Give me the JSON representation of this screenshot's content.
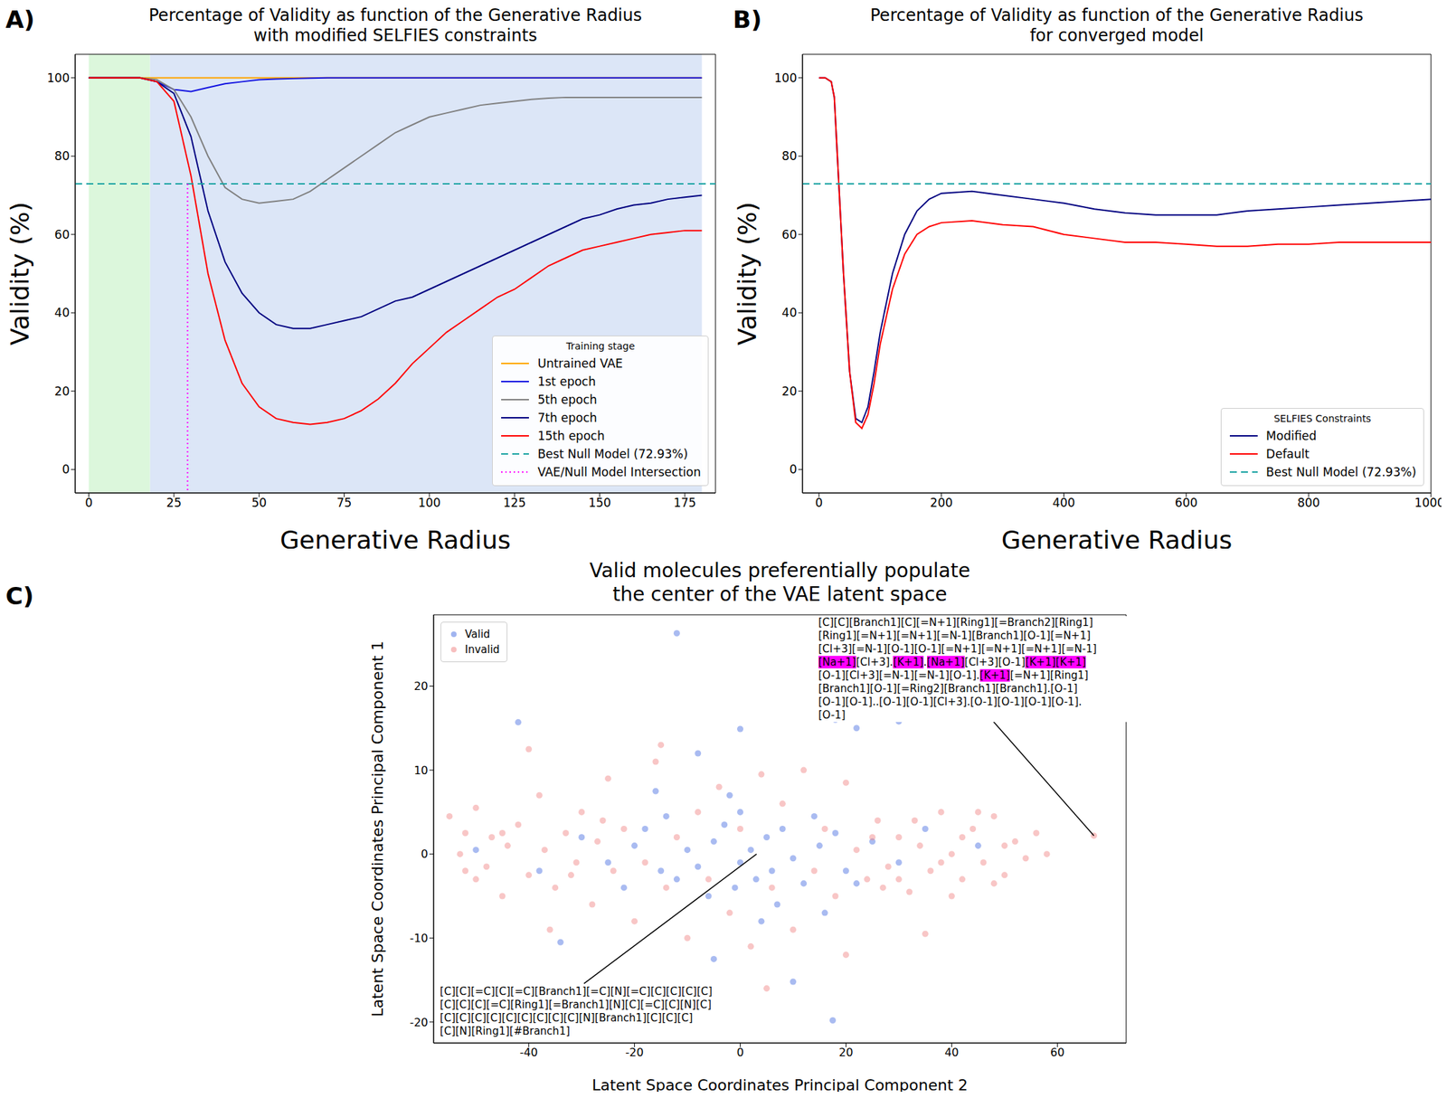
{
  "chart_data": [
    {
      "type": "line",
      "panel_label": "A)",
      "title": "Percentage of Validity as function of the Generative Radius\nwith modified SELFIES constraints",
      "x_label": "Generative Radius",
      "y_label": "Validity (%)",
      "xlim": [
        -4,
        184
      ],
      "ylim": [
        -6,
        106
      ],
      "xticks": [
        0,
        25,
        50,
        75,
        100,
        125,
        150,
        175
      ],
      "yticks": [
        0,
        20,
        40,
        60,
        80,
        100
      ],
      "legend": "lower right",
      "legend_title": "Training stage",
      "shaded_regions": [
        {
          "x": [
            0,
            18
          ],
          "color": "#dcf7dc"
        },
        {
          "x": [
            18,
            180
          ],
          "color": "#dce6f7"
        }
      ],
      "x": [
        0,
        5,
        10,
        15,
        20,
        25,
        30,
        35,
        40,
        45,
        50,
        55,
        60,
        65,
        70,
        75,
        80,
        85,
        90,
        95,
        100,
        105,
        110,
        115,
        120,
        125,
        130,
        135,
        140,
        145,
        150,
        155,
        160,
        165,
        170,
        175,
        180
      ],
      "series": [
        {
          "name": "Untrained VAE",
          "color": "#ffa500",
          "line_style": "solid",
          "values": [
            100,
            100,
            100,
            100,
            100,
            100,
            100,
            100,
            100,
            100,
            100,
            100,
            100,
            100,
            100,
            100,
            100,
            100,
            100,
            100,
            100,
            100,
            100,
            100,
            100,
            100,
            100,
            100,
            100,
            100,
            100,
            100,
            100,
            100,
            100,
            100,
            100
          ]
        },
        {
          "name": "1st epoch",
          "color": "#1010e0",
          "line_style": "solid",
          "values": [
            100,
            100,
            100,
            100,
            99,
            97,
            96.5,
            97.5,
            98.5,
            99,
            99.5,
            99.7,
            99.8,
            99.9,
            100,
            100,
            100,
            100,
            100,
            100,
            100,
            100,
            100,
            100,
            100,
            100,
            100,
            100,
            100,
            100,
            100,
            100,
            100,
            100,
            100,
            100,
            100
          ]
        },
        {
          "name": "5th epoch",
          "color": "#808080",
          "line_style": "solid",
          "values": [
            100,
            100,
            100,
            100,
            99.5,
            97,
            90,
            80,
            72,
            69,
            68,
            68.5,
            69,
            71,
            74,
            77,
            80,
            83,
            86,
            88,
            90,
            91,
            92,
            93,
            93.5,
            94,
            94.5,
            94.8,
            95,
            95,
            95,
            95,
            95,
            95,
            95,
            95,
            95
          ]
        },
        {
          "name": "7th epoch",
          "color": "#000080",
          "line_style": "solid",
          "values": [
            100,
            100,
            100,
            100,
            99,
            96,
            85,
            66,
            53,
            45,
            40,
            37,
            36,
            36,
            37,
            38,
            39,
            41,
            43,
            44,
            46,
            48,
            50,
            52,
            54,
            56,
            58,
            60,
            62,
            64,
            65,
            66.5,
            67.5,
            68,
            69,
            69.5,
            70
          ]
        },
        {
          "name": "15th epoch",
          "color": "#ff0000",
          "line_style": "solid",
          "values": [
            100,
            100,
            100,
            100,
            99,
            94,
            75,
            50,
            33,
            22,
            16,
            13,
            12,
            11.5,
            12,
            13,
            15,
            18,
            22,
            27,
            31,
            35,
            38,
            41,
            44,
            46,
            49,
            52,
            54,
            56,
            57,
            58,
            59,
            60,
            60.5,
            61,
            61
          ]
        },
        {
          "name": "Best Null Model (72.93%)",
          "color": "#1aa3a3",
          "line_style": "dashed",
          "x": [
            -4,
            184
          ],
          "values": [
            72.93,
            72.93
          ]
        },
        {
          "name": "VAE/Null Model Intersection",
          "color": "#ff00ff",
          "line_style": "dotted",
          "x": [
            29,
            29
          ],
          "values": [
            72.93,
            -6
          ]
        }
      ]
    },
    {
      "type": "line",
      "panel_label": "B)",
      "title": "Percentage of Validity as function of the Generative Radius\nfor converged model",
      "x_label": "Generative Radius",
      "y_label": "Validity (%)",
      "xlim": [
        -27,
        1000
      ],
      "ylim": [
        -6,
        106
      ],
      "xticks": [
        0,
        200,
        400,
        600,
        800,
        1000
      ],
      "yticks": [
        0,
        20,
        40,
        60,
        80,
        100
      ],
      "legend": "lower right",
      "legend_title": "SELFIES Constraints",
      "x": [
        0,
        10,
        20,
        25,
        30,
        40,
        50,
        60,
        70,
        80,
        90,
        100,
        120,
        140,
        160,
        180,
        200,
        250,
        300,
        350,
        400,
        450,
        500,
        550,
        600,
        650,
        700,
        750,
        800,
        850,
        900,
        950,
        1000
      ],
      "series": [
        {
          "name": "Modified",
          "color": "#000080",
          "line_style": "solid",
          "values": [
            100,
            100,
            99,
            95,
            80,
            50,
            25,
            13,
            12,
            16,
            25,
            35,
            50,
            60,
            66,
            69,
            70.5,
            71,
            70,
            69,
            68,
            66.5,
            65.5,
            65,
            65,
            65,
            66,
            66.5,
            67,
            67.5,
            68,
            68.5,
            69
          ]
        },
        {
          "name": "Default",
          "color": "#ff0000",
          "line_style": "solid",
          "values": [
            100,
            100,
            99,
            95,
            80,
            50,
            25,
            12,
            10.5,
            14,
            22,
            32,
            46,
            55,
            60,
            62,
            63,
            63.5,
            62.5,
            62,
            60,
            59,
            58,
            58,
            57.5,
            57,
            57,
            57.5,
            57.5,
            58,
            58,
            58,
            58
          ]
        },
        {
          "name": "Best Null Model (72.93%)",
          "color": "#1aa3a3",
          "line_style": "dashed",
          "x": [
            -27,
            1000
          ],
          "values": [
            72.93,
            72.93
          ]
        }
      ]
    },
    {
      "type": "scatter",
      "panel_label": "C)",
      "title": "Valid molecules preferentially populate\nthe center of the VAE latent space",
      "x_label": "Latent Space Coordinates Principal Component 2",
      "y_label": "Latent Space Coordinates Principal Component 1",
      "xlim": [
        -58,
        73
      ],
      "ylim": [
        -22.5,
        28.5
      ],
      "xticks": [
        -40,
        -20,
        0,
        20,
        40,
        60
      ],
      "yticks": [
        -20,
        -10,
        0,
        10,
        20
      ],
      "legend": "upper left",
      "series": [
        {
          "name": "Valid",
          "color": "#4169e1",
          "marker": "circle",
          "x": [
            -12,
            17.5,
            -42,
            10,
            -5,
            22,
            30,
            18,
            -8,
            -34,
            0,
            -20,
            -15,
            -10,
            -5,
            0,
            5,
            10,
            15,
            20,
            -18,
            -12,
            -3,
            3,
            8,
            12,
            18,
            -25,
            25,
            -8,
            2,
            6,
            -14,
            14,
            -6,
            7,
            -22,
            22,
            -30,
            30,
            -2,
            4,
            -16,
            16,
            35,
            -38,
            45,
            -50,
            0,
            -1
          ],
          "values": [
            26.3,
            -19.8,
            15.7,
            -15.2,
            -12.5,
            15,
            15.8,
            16,
            12,
            -10.5,
            14.9,
            1,
            -2,
            0.5,
            1.5,
            -1,
            2,
            -0.5,
            1,
            -2,
            3,
            -3,
            3.5,
            -3,
            3,
            -3.5,
            2.5,
            -1,
            1.5,
            -1.5,
            0.5,
            -2,
            4.5,
            4.5,
            -5,
            -6,
            -4,
            -3.5,
            2,
            -1,
            7,
            -8,
            7.5,
            -7,
            3,
            -2,
            1,
            0.5,
            5,
            -4
          ]
        },
        {
          "name": "Invalid",
          "color": "#f08080",
          "marker": "circle",
          "x": [
            -55,
            -53,
            -52,
            -50,
            -48,
            -47,
            -45,
            -44,
            -42,
            -40,
            -38,
            -37,
            -35,
            -33,
            -31,
            -30,
            -28,
            -27,
            -25,
            -24,
            -22,
            -20,
            -18,
            -16,
            -14,
            -12,
            -10,
            -8,
            -6,
            -4,
            -2,
            0,
            2,
            4,
            6,
            8,
            10,
            12,
            14,
            16,
            18,
            20,
            22,
            24,
            26,
            28,
            30,
            32,
            34,
            36,
            38,
            40,
            42,
            44,
            46,
            48,
            50,
            52,
            54,
            56,
            58,
            35,
            -36,
            -15,
            20,
            -40,
            5,
            66.9,
            25,
            30,
            38,
            42,
            45,
            50,
            33,
            27,
            40,
            48,
            -45,
            -50,
            -32,
            -26,
            -52
          ],
          "values": [
            4.5,
            0,
            -2,
            5.5,
            -1.5,
            2,
            -5,
            1,
            3.5,
            -2.5,
            7,
            0.5,
            -4,
            2.5,
            -1,
            5,
            -6,
            1.5,
            9,
            -2,
            3,
            -8,
            -1,
            11,
            -4,
            2,
            -10,
            5,
            -3,
            8,
            -7,
            3,
            -11,
            9.5,
            -4,
            6,
            -9,
            10,
            -2,
            3,
            -5,
            8.5,
            0.5,
            -3,
            4,
            -1.5,
            2,
            -4.5,
            1,
            -2,
            5,
            0,
            -3,
            3,
            -1,
            4.5,
            -2.5,
            1.5,
            -0.5,
            2.5,
            0,
            -9.5,
            -9,
            13,
            -12,
            12.5,
            -16,
            2.2,
            2,
            -3,
            -1,
            2,
            5,
            1,
            4,
            -4,
            -5,
            -3.5,
            2.5,
            -3,
            -2.5,
            4,
            2.5
          ]
        }
      ],
      "annotations": [
        {
          "xy": [
            66.9,
            2.2
          ],
          "color": "#ff00ff",
          "highlighted": [
            "[Na+1]",
            "[K+1]"
          ],
          "text": [
            "[C][C][Branch1][C][=N+1][Ring1][=Branch2][Ring1]",
            "[Ring1][=N+1][=N+1][=N-1][Branch1][O-1][=N+1]",
            "[Cl+3][=N-1][O-1][O-1][=N+1][=N+1][=N+1][=N-1]",
            "[Na+1][Cl+3].[K+1].[Na+1][Cl+3][O-1][K+1][K+1]",
            "[O-1][Cl+3][=N-1][=N-1][O-1].[K+1][=N+1][Ring1]",
            "[Branch1][O-1][=Ring2][Branch1][Branch1].[O-1]",
            "[O-1][O-1]..[O-1][O-1][Cl+3].[O-1][O-1][O-1][O-1].",
            "[O-1]"
          ]
        },
        {
          "xy": [
            3.1,
            0
          ],
          "text": [
            "[C][C][=C][C][=C][Branch1][=C][N][=C][C][C][C][C]",
            "[C][C][C][=C][Ring1][=Branch1][N][C][=C][C][N][C]",
            "[C][C][C][C][C][C][C][C][C][N][Branch1][C][C][C]",
            "[C][N][Ring1][#Branch1]"
          ]
        }
      ]
    }
  ]
}
